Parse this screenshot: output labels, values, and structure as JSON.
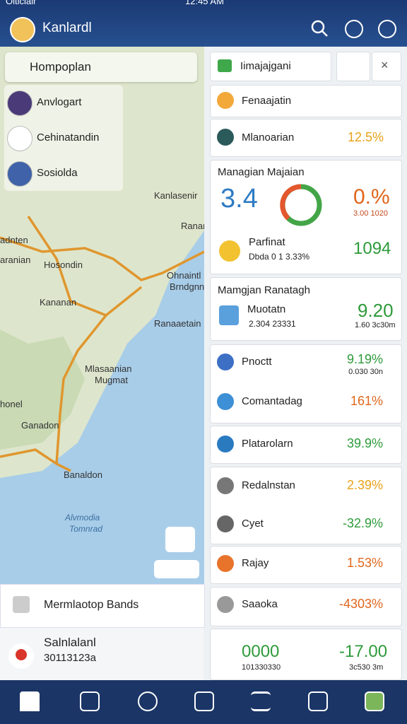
{
  "status_bar": {
    "carrier": "Olticialr",
    "time": "12:45 AM"
  },
  "header": {
    "title": "Kanlardl"
  },
  "search": {
    "placeholder": "Hompoplan"
  },
  "places": [
    {
      "name": "Anvlogart"
    },
    {
      "name": "Cehinatandin"
    },
    {
      "name": "Sosiolda"
    }
  ],
  "map": {
    "labels": [
      "Kanlasenir",
      "Ranar",
      "adnten",
      "aranian",
      "Hosondin",
      "Ohnaintl",
      "Brndgnn",
      "Kananan",
      "Mlasaanian",
      "Mugmat",
      "honel",
      "Ganadon",
      "Banaldon",
      "Alvmodia",
      "Tomnrad",
      "Ranaaetain"
    ]
  },
  "bottom_panel": {
    "title": "Mermlaotop Bands",
    "item_name": "Salnlalanl",
    "item_code": "30113123a"
  },
  "right_panel": {
    "dropdown": "Iimajajgani",
    "rows": [
      {
        "name": "Fenaajatin"
      },
      {
        "name": "Mlanoarian",
        "value": "12.5%"
      }
    ],
    "summary_card": {
      "title": "Managian Majaian",
      "big": "3.4",
      "percent": "0.%",
      "percent_sub": "3.00 1020",
      "name": "Parfinat",
      "detail": "Dbda 0 1 3.33%",
      "value": "1094"
    },
    "detail_card": {
      "title": "Mamgjan Ranatagh",
      "name": "Muotatn",
      "detail": "2.304 23331",
      "value": "9.20",
      "value_sub": "1.60 3c30m"
    },
    "list": [
      {
        "name": "Pnoctt",
        "value": "9.19%",
        "sub": "0.030 30n"
      },
      {
        "name": "Comantadag",
        "value": "161%"
      },
      {
        "name": "Platarolarn",
        "value": "39.9%"
      },
      {
        "name": "Redalnstan",
        "value": "2.39%"
      },
      {
        "name": "Cyet",
        "value": "-32.9%"
      },
      {
        "name": "Rajay",
        "value": "1.53%"
      },
      {
        "name": "Saaoka",
        "value": "-4303%"
      }
    ],
    "footer_card": {
      "left": "0000",
      "left_sub": "101330330",
      "right": "-17.00",
      "right_sub": "3c530 3m"
    }
  }
}
